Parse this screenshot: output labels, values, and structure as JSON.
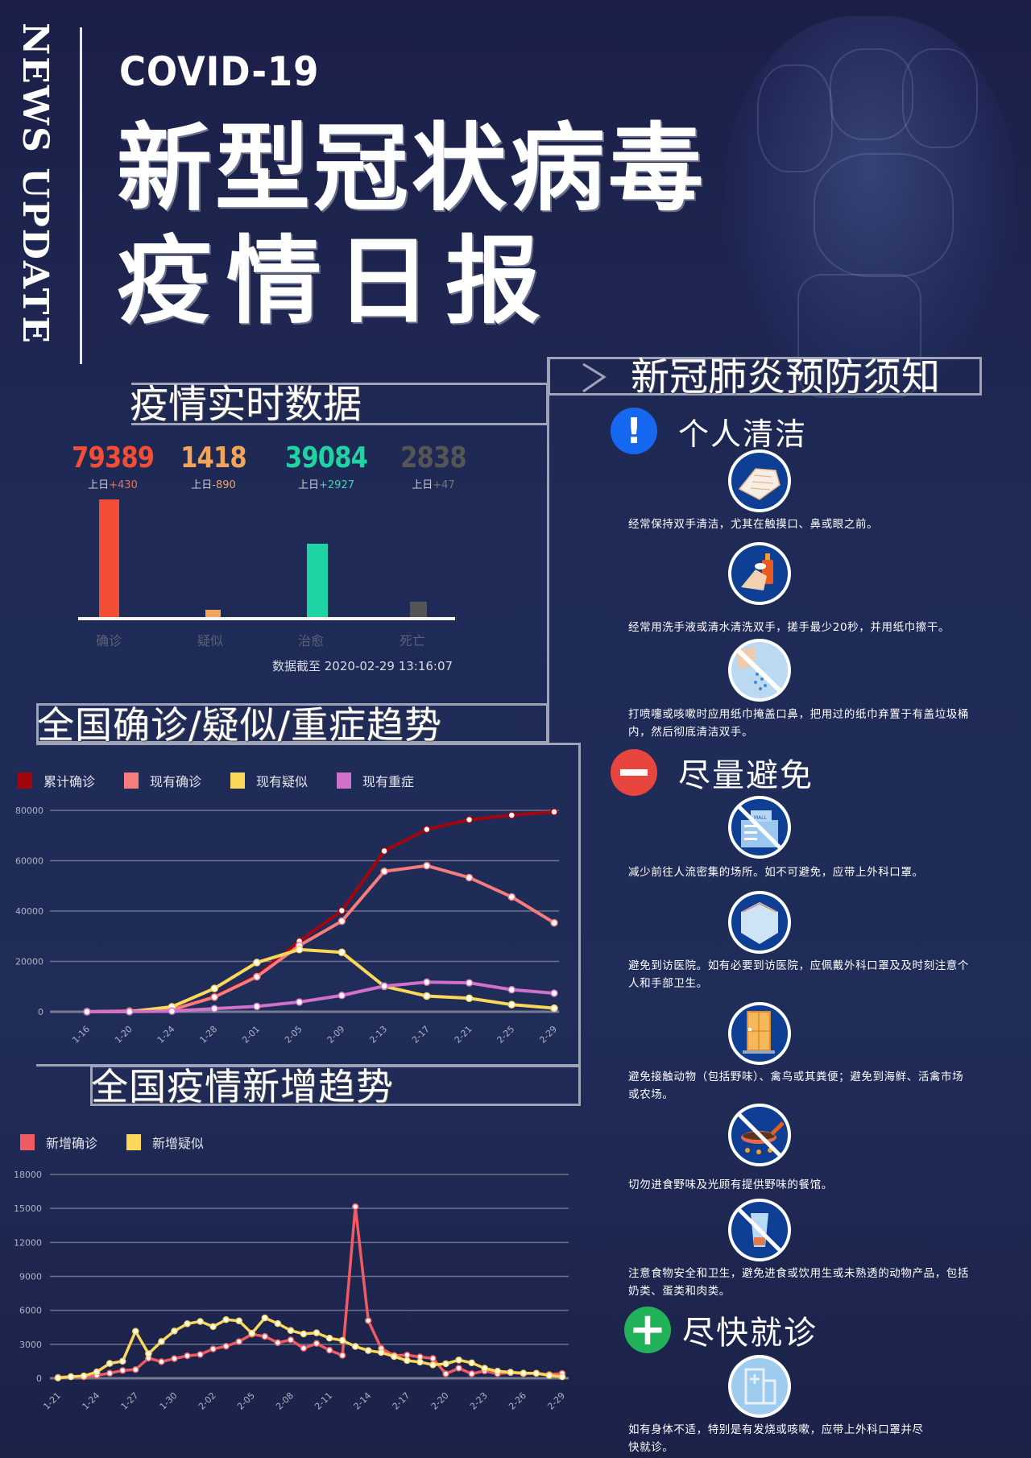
{
  "header": {
    "vertical_label": "NEWS UPDATE",
    "kicker": "COVID-19",
    "title_line1": "新型冠状病毒",
    "title_line2": "疫情日报"
  },
  "realtime": {
    "section_title": "疫情实时数据",
    "stats": [
      {
        "label": "确诊",
        "value": "79389",
        "delta_prefix": "上日",
        "delta": "+430",
        "color": "#f24e35"
      },
      {
        "label": "疑似",
        "value": "1418",
        "delta_prefix": "上日",
        "delta": "-890",
        "color": "#f0a55a"
      },
      {
        "label": "治愈",
        "value": "39084",
        "delta_prefix": "上日",
        "delta": "+2927",
        "color": "#1ed3a4"
      },
      {
        "label": "死亡",
        "value": "2838",
        "delta_prefix": "上日",
        "delta": "+47",
        "color": "#555555"
      }
    ],
    "timestamp": "数据截至 2020-02-29 13:16:07"
  },
  "trend_title": "全国确诊/疑似/重症趋势",
  "new_title": "全国疫情新增趋势",
  "chart_data": [
    {
      "type": "bar",
      "title": "疫情实时数据",
      "categories": [
        "确诊",
        "疑似",
        "治愈",
        "死亡"
      ],
      "values": [
        79389,
        1418,
        39084,
        2838
      ],
      "colors": [
        "#f24e35",
        "#f0a55a",
        "#1ed3a4",
        "#555555"
      ],
      "xlabel": "",
      "ylabel": "",
      "grid": false
    },
    {
      "type": "line",
      "title": "全国确诊/疑似/重症趋势",
      "categories": [
        "1-16",
        "1-20",
        "1-24",
        "1-28",
        "2-01",
        "2-05",
        "2-09",
        "2-13",
        "2-17",
        "2-21",
        "2-25",
        "2-29"
      ],
      "yticks": [
        0,
        20000,
        40000,
        60000,
        80000
      ],
      "ylim": [
        0,
        80000
      ],
      "legend_position": "top",
      "grid": true,
      "series": [
        {
          "name": "累计确诊",
          "color": "#a3050f",
          "values": [
            45,
            291,
            830,
            5974,
            14380,
            28018,
            40171,
            63851,
            72436,
            76288,
            78064,
            79389
          ]
        },
        {
          "name": "现有确诊",
          "color": "#f77c7c",
          "values": [
            40,
            270,
            780,
            5800,
            13900,
            26300,
            35982,
            55748,
            58016,
            53284,
            45604,
            35329
          ]
        },
        {
          "name": "现有疑似",
          "color": "#fbd75a",
          "values": [
            0,
            54,
            1965,
            9239,
            19544,
            24702,
            23589,
            10109,
            6242,
            5365,
            2824,
            1418
          ]
        },
        {
          "name": "现有重症",
          "color": "#d271c9",
          "values": [
            0,
            35,
            237,
            1239,
            2110,
            3859,
            6484,
            10204,
            11741,
            11477,
            8752,
            7365
          ]
        }
      ]
    },
    {
      "type": "line",
      "title": "全国疫情新增趋势",
      "categories": [
        "1-21",
        "1-24",
        "1-27",
        "1-30",
        "2-02",
        "2-05",
        "2-08",
        "2-11",
        "2-14",
        "2-17",
        "2-20",
        "2-23",
        "2-26",
        "2-29"
      ],
      "x": [
        "1-21",
        "1-22",
        "1-23",
        "1-24",
        "1-25",
        "1-26",
        "1-27",
        "1-28",
        "1-29",
        "1-30",
        "1-31",
        "2-01",
        "2-02",
        "2-03",
        "2-04",
        "2-05",
        "2-06",
        "2-07",
        "2-08",
        "2-09",
        "2-10",
        "2-11",
        "2-12",
        "2-13",
        "2-14",
        "2-15",
        "2-16",
        "2-17",
        "2-18",
        "2-19",
        "2-20",
        "2-21",
        "2-22",
        "2-23",
        "2-24",
        "2-25",
        "2-26",
        "2-27",
        "2-28",
        "2-29"
      ],
      "yticks": [
        0,
        3000,
        6000,
        9000,
        12000,
        15000,
        18000
      ],
      "ylim": [
        0,
        18000
      ],
      "legend_position": "top",
      "grid": true,
      "series": [
        {
          "name": "新增确诊",
          "color": "#f05a62",
          "values": [
            77,
            149,
            131,
            259,
            444,
            688,
            769,
            1771,
            1459,
            1737,
            1982,
            2102,
            2590,
            2829,
            3235,
            3887,
            3694,
            3143,
            3385,
            2652,
            3073,
            2478,
            2015,
            15152,
            5090,
            2641,
            2009,
            2048,
            1886,
            1749,
            394,
            889,
            397,
            648,
            409,
            508,
            406,
            433,
            327,
            427
          ]
        },
        {
          "name": "新增疑似",
          "color": "#fbd75a",
          "values": [
            27,
            137,
            205,
            560,
            1309,
            1501,
            4148,
            2166,
            3248,
            4171,
            4812,
            5019,
            4562,
            5173,
            5072,
            3971,
            5328,
            4833,
            4214,
            3916,
            4008,
            3536,
            3342,
            2807,
            2450,
            2277,
            1918,
            1563,
            1432,
            1185,
            1277,
            1614,
            1361,
            882,
            620,
            530,
            452,
            439,
            248,
            132
          ]
        }
      ]
    }
  ],
  "prevention": {
    "section_title": "新冠肺炎预防须知",
    "groups": [
      {
        "title": "个人清洁",
        "icon": "exclamation-icon",
        "icon_glyph": "!",
        "color": "#1668f0",
        "tips": [
          {
            "icon": "hand-wipe-icon",
            "text": "经常保持双手清洁，尤其在触摸口、鼻或眼之前。"
          },
          {
            "icon": "soap-handwash-icon",
            "text": "经常用洗手液或清水清洗双手，搓手最少20秒，并用纸巾擦干。"
          },
          {
            "icon": "sneeze-cover-icon",
            "text": "打喷嚏或咳嗽时应用纸巾掩盖口鼻，把用过的纸巾弃置于有盖垃圾桶内，然后彻底清洁双手。"
          }
        ]
      },
      {
        "title": "尽量避免",
        "icon": "minus-circle-icon",
        "icon_glyph": "—",
        "color": "#e8453f",
        "tips": [
          {
            "icon": "no-crowd-building-icon",
            "badge": "MALL",
            "text": "减少前往人流密集的场所。如不可避免，应带上外科口罩。"
          },
          {
            "icon": "face-mask-icon",
            "text": "避免到访医院。如有必要到访医院，应佩戴外科口罩及及时刻注意个人和手部卫生。"
          },
          {
            "icon": "door-icon",
            "text": "避免接触动物（包括野味）、禽鸟或其粪便；避免到海鲜、活禽市场或农场。"
          },
          {
            "icon": "no-cooking-wild-icon",
            "text": "切勿进食野味及光顾有提供野味的餐馆。"
          },
          {
            "icon": "no-raw-drink-icon",
            "text": "注意食物安全和卫生，避免进食或饮用生或未熟透的动物产品，包括奶类、蛋类和肉类。"
          }
        ]
      },
      {
        "title": "尽快就诊",
        "icon": "plus-icon",
        "icon_glyph": "+",
        "color": "#22b25a",
        "tips": [
          {
            "icon": "hospital-icon",
            "text": "如有身体不适，特别是有发烧或咳嗽，应带上外科口罩并尽快就诊。"
          }
        ]
      }
    ]
  }
}
